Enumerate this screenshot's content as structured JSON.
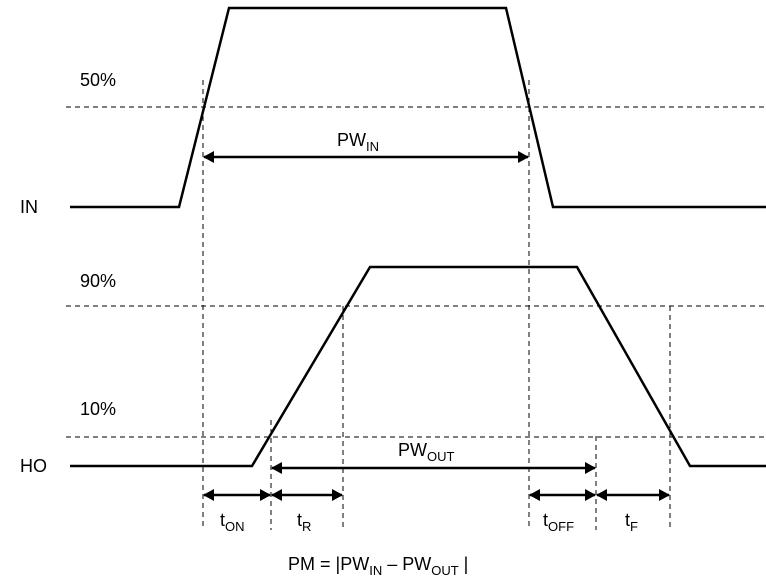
{
  "signals": {
    "in_label": "IN",
    "ho_label": "HO"
  },
  "thresholds": {
    "in_50": "50%",
    "ho_90": "90%",
    "ho_10": "10%"
  },
  "measurements": {
    "pw_in_main": "PW",
    "pw_in_sub": "IN",
    "pw_out_main": "PW",
    "pw_out_sub": "OUT",
    "t_on_main": "t",
    "t_on_sub": "ON",
    "t_r_main": "t",
    "t_r_sub": "R",
    "t_off_main": "t",
    "t_off_sub": "OFF",
    "t_f_main": "t",
    "t_f_sub": "F"
  },
  "formula": {
    "prefix": "PM = ",
    "bar_left": "|",
    "pw_in_main": "PW",
    "pw_in_sub": "IN",
    "minus": " – ",
    "pw_out_main": "PW",
    "pw_out_sub": "OUT",
    "bar_right": " |"
  }
}
